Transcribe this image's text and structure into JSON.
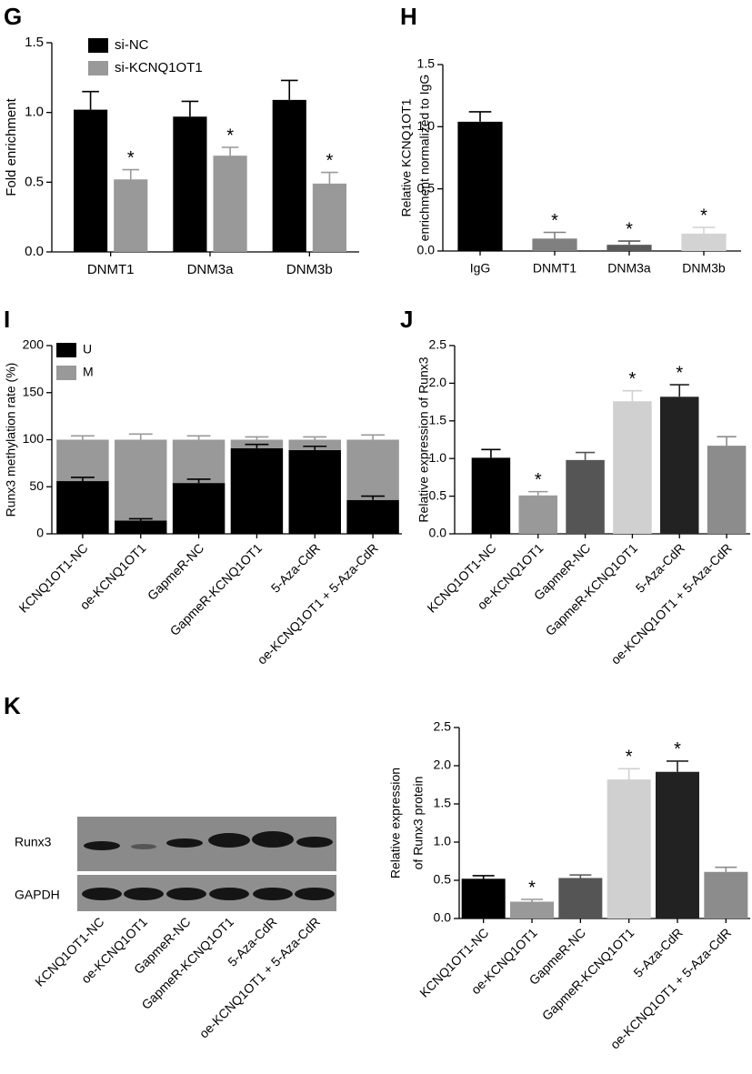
{
  "chart_data": [
    {
      "type": "grouped_bar",
      "panel": "G",
      "ylabel": [
        "Fold enrichment"
      ],
      "categories": [
        "DNMT1",
        "DNM3a",
        "DNM3b"
      ],
      "series": [
        {
          "name": "si-NC",
          "color": "#000000",
          "values": [
            1.02,
            0.97,
            1.09
          ],
          "errors": [
            0.13,
            0.11,
            0.14
          ],
          "markers": [
            null,
            null,
            null
          ]
        },
        {
          "name": "si-KCNQ1OT1",
          "color": "#999999",
          "values": [
            0.52,
            0.69,
            0.49
          ],
          "errors": [
            0.07,
            0.06,
            0.08
          ],
          "markers": [
            "*",
            "*",
            "*"
          ]
        }
      ],
      "ylim": [
        0,
        1.5
      ],
      "yticks": [
        {
          "value": 0,
          "label": "0.0"
        },
        0.5,
        {
          "value": 1,
          "label": "1.0"
        },
        1.5
      ]
    },
    {
      "type": "bar",
      "panel": "H",
      "ylabel": [
        "Relative KCNQ1OT1",
        "enrichment normalized to IgG"
      ],
      "categories": [
        "IgG",
        "DNMT1",
        "DNM3a",
        "DNM3b"
      ],
      "values": [
        1.04,
        0.1,
        0.05,
        0.14
      ],
      "errors": [
        0.08,
        0.05,
        0.03,
        0.05
      ],
      "colors": [
        "#000000",
        "#808080",
        "#5a5a5a",
        "#d3d3d3"
      ],
      "markers": [
        null,
        "*",
        "*",
        "*"
      ],
      "ylim": [
        0,
        1.5
      ],
      "yticks": [
        {
          "value": 0,
          "label": "0.0"
        },
        0.5,
        {
          "value": 1,
          "label": "1.0"
        },
        1.5
      ]
    },
    {
      "type": "stacked_bar",
      "panel": "I",
      "ylabel": [
        "Runx3 methylation rate (%)"
      ],
      "categories": [
        "KCNQ1OT1-NC",
        "oe-KCNQ1OT1",
        "GapmeR-NC",
        "GapmeR-KCNQ1OT1",
        "5-Aza-CdR",
        "oe-KCNQ1OT1 + 5-Aza-CdR"
      ],
      "series": [
        {
          "name": "U",
          "color": "#000000",
          "values": [
            56,
            14,
            54,
            91,
            89,
            36
          ],
          "errors": [
            4,
            2,
            4,
            4,
            4,
            4
          ]
        },
        {
          "name": "M",
          "color": "#999999",
          "values": [
            44,
            86,
            46,
            9,
            11,
            64
          ],
          "errors": [
            4,
            6,
            4,
            3,
            3,
            5
          ]
        }
      ],
      "ylim": [
        0,
        200
      ],
      "yticks": [
        0,
        50,
        100,
        150,
        200
      ]
    },
    {
      "type": "bar",
      "panel": "J",
      "ylabel": [
        "Relative expression of Runx3"
      ],
      "categories": [
        "KCNQ1OT1-NC",
        "oe-KCNQ1OT1",
        "GapmeR-NC",
        "GapmeR-KCNQ1OT1",
        "5-Aza-CdR",
        "oe-KCNQ1OT1 + 5-Aza-CdR"
      ],
      "values": [
        1.01,
        0.51,
        0.98,
        1.76,
        1.82,
        1.17
      ],
      "errors": [
        0.11,
        0.05,
        0.1,
        0.14,
        0.16,
        0.12
      ],
      "colors": [
        "#000000",
        "#999999",
        "#555555",
        "#d0d0d0",
        "#222222",
        "#8c8c8c"
      ],
      "markers": [
        null,
        "*",
        null,
        "*",
        "*",
        null
      ],
      "ylim": [
        0,
        2.5
      ],
      "yticks": [
        {
          "value": 0,
          "label": "0.0"
        },
        0.5,
        {
          "value": 1,
          "label": "1.0"
        },
        1.5,
        {
          "value": 2,
          "label": "2.0"
        },
        2.5
      ]
    },
    {
      "type": "bar",
      "ylabel": [
        "Relative expression",
        "of Runx3 protein"
      ],
      "categories": [
        "KCNQ1OT1-NC",
        "oe-KCNQ1OT1",
        "GapmeR-NC",
        "GapmeR-KCNQ1OT1",
        "5-Aza-CdR",
        "oe-KCNQ1OT1 + 5-Aza-CdR"
      ],
      "values": [
        0.52,
        0.22,
        0.53,
        1.82,
        1.92,
        0.61
      ],
      "errors": [
        0.04,
        0.03,
        0.04,
        0.14,
        0.14,
        0.06
      ],
      "colors": [
        "#000000",
        "#999999",
        "#555555",
        "#d0d0d0",
        "#222222",
        "#8c8c8c"
      ],
      "markers": [
        null,
        "*",
        null,
        "*",
        "*",
        null
      ],
      "ylim": [
        0,
        2.5
      ],
      "yticks": [
        {
          "value": 0,
          "label": "0.0"
        },
        0.5,
        {
          "value": 1,
          "label": "1.0"
        },
        1.5,
        {
          "value": 2,
          "label": "2.0"
        },
        2.5
      ]
    }
  ],
  "blot": {
    "panel": "K",
    "rows": [
      "Runx3",
      "GAPDH"
    ],
    "lanes": [
      "KCNQ1OT1-NC",
      "oe-KCNQ1OT1",
      "GapmeR-NC",
      "GapmeR-KCNQ1OT1",
      "5-Aza-CdR",
      "oe-KCNQ1OT1 + 5-Aza-CdR"
    ]
  }
}
